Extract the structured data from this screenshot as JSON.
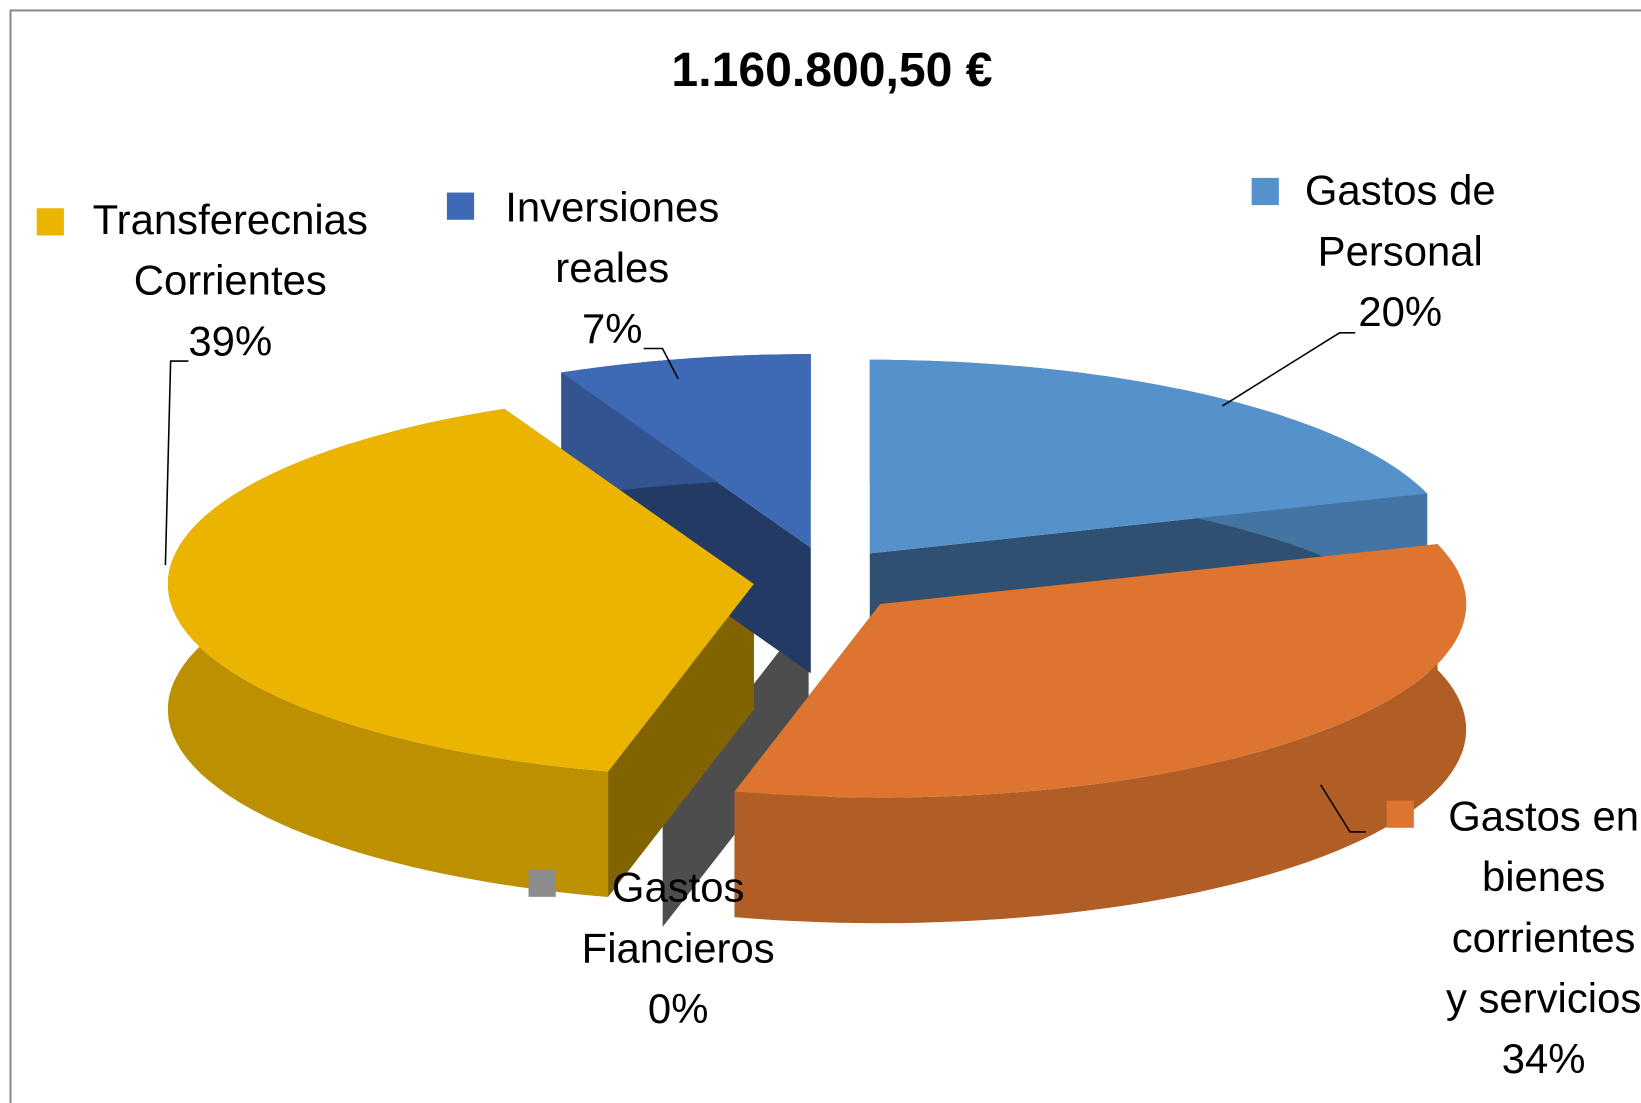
{
  "chart_data": {
    "type": "pie3d",
    "title": "1.160.800,50 €",
    "categories": [
      "Gastos de Personal",
      "Gastos en bienes corrientes y servicios",
      "Gastos Fiancieros",
      "Transferecnias Corrientes",
      "Inversiones reales"
    ],
    "values": [
      20,
      34,
      0,
      39,
      7
    ],
    "value_labels": [
      "20%",
      "34%",
      "0%",
      "39%",
      "7%"
    ],
    "colors": [
      "#5591cb",
      "#dd7430",
      "#8c8c8c",
      "#ebb400",
      "#3e6ab5"
    ]
  }
}
